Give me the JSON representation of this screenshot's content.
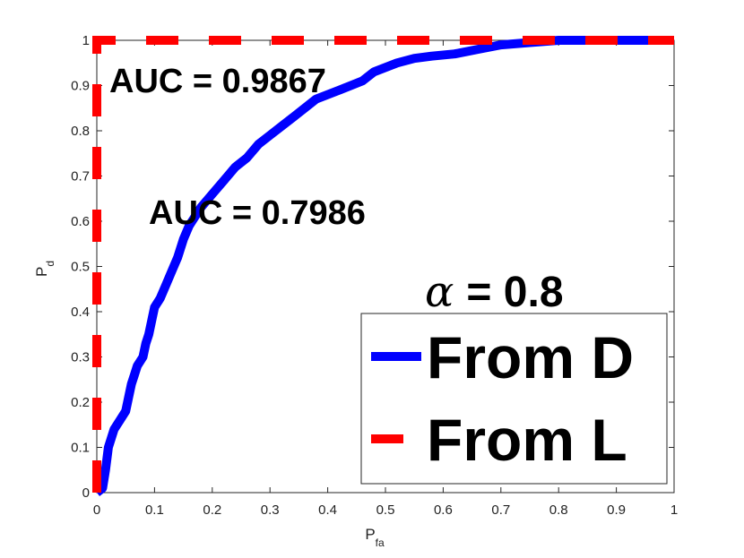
{
  "chart_data": {
    "type": "line",
    "xlabel": "P",
    "xlabel_sub": "fa",
    "ylabel": "P",
    "ylabel_sub": "d",
    "xlim": [
      0,
      1
    ],
    "ylim": [
      0,
      1
    ],
    "xticks": [
      "0",
      "0.1",
      "0.2",
      "0.3",
      "0.4",
      "0.5",
      "0.6",
      "0.7",
      "0.8",
      "0.9",
      "1"
    ],
    "yticks": [
      "0",
      "0.1",
      "0.2",
      "0.3",
      "0.4",
      "0.5",
      "0.6",
      "0.7",
      "0.8",
      "0.9",
      "1"
    ],
    "grid": false,
    "legend_position": "bottom-right",
    "series": [
      {
        "name": "From D",
        "color": "#0000ff",
        "style": "solid",
        "x": [
          0,
          0.01,
          0.015,
          0.02,
          0.025,
          0.03,
          0.04,
          0.05,
          0.055,
          0.06,
          0.065,
          0.07,
          0.08,
          0.085,
          0.09,
          0.095,
          0.1,
          0.11,
          0.12,
          0.13,
          0.14,
          0.15,
          0.16,
          0.18,
          0.2,
          0.22,
          0.24,
          0.26,
          0.28,
          0.3,
          0.32,
          0.34,
          0.36,
          0.38,
          0.4,
          0.42,
          0.44,
          0.46,
          0.48,
          0.5,
          0.52,
          0.55,
          0.58,
          0.62,
          0.66,
          0.7,
          0.75,
          0.8,
          0.85,
          0.9,
          0.95,
          1
        ],
        "y": [
          0,
          0.01,
          0.05,
          0.1,
          0.12,
          0.14,
          0.16,
          0.18,
          0.21,
          0.24,
          0.26,
          0.28,
          0.3,
          0.33,
          0.35,
          0.38,
          0.41,
          0.43,
          0.46,
          0.49,
          0.52,
          0.56,
          0.59,
          0.63,
          0.66,
          0.69,
          0.72,
          0.74,
          0.77,
          0.79,
          0.81,
          0.83,
          0.85,
          0.87,
          0.88,
          0.89,
          0.9,
          0.91,
          0.93,
          0.94,
          0.95,
          0.96,
          0.965,
          0.97,
          0.98,
          0.99,
          0.995,
          1,
          1,
          1,
          1,
          1
        ]
      },
      {
        "name": "From L",
        "color": "#ff0000",
        "style": "dashed",
        "x": [
          0,
          0,
          1
        ],
        "y": [
          0,
          1,
          1
        ]
      }
    ]
  },
  "annotations": {
    "auc_l": "AUC = 0.9867",
    "auc_d": "AUC = 0.7986",
    "alpha_symbol": "α",
    "alpha_value": "= 0.8"
  },
  "legend": {
    "from_d": "From D",
    "from_l": "From L"
  }
}
